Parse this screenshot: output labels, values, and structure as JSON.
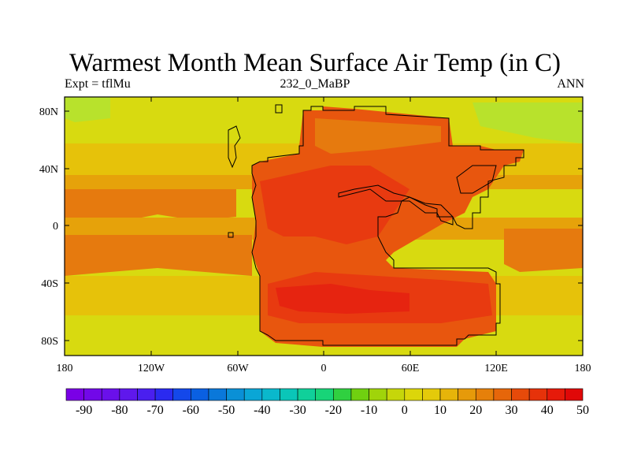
{
  "title": "Warmest Month Mean Surface Air Temp (in C)",
  "subtitle_left": "Expt = tflMu",
  "subtitle_center": "232_0_MaBP",
  "subtitle_right": "ANN",
  "y_ticks": [
    "80N",
    "40N",
    "0",
    "40S",
    "80S"
  ],
  "x_ticks": [
    "180",
    "120W",
    "60W",
    "0",
    "60E",
    "120E",
    "180"
  ],
  "colorbar": {
    "labels": [
      "-90",
      "-80",
      "-70",
      "-60",
      "-50",
      "-40",
      "-30",
      "-20",
      "-10",
      "0",
      "10",
      "20",
      "30",
      "40",
      "50"
    ],
    "colors": [
      "#7a00e6",
      "#7208e8",
      "#6a10ea",
      "#5f18ec",
      "#4a1fef",
      "#2a2af0",
      "#1448ea",
      "#0a60e2",
      "#0a78da",
      "#0a90d6",
      "#0aa6d6",
      "#0ab8cc",
      "#0ac6b8",
      "#10d09a",
      "#18d478",
      "#30d040",
      "#70d010",
      "#a0d40a",
      "#c6d60a",
      "#dcd60a",
      "#e4ca0a",
      "#e6b40a",
      "#e69a0a",
      "#e6800a",
      "#e6660a",
      "#e64a0a",
      "#e6320a",
      "#e61a0a",
      "#e00808"
    ]
  },
  "map_colors": {
    "cold_green": "#b8e22c",
    "cool": "#d8da10",
    "mild": "#e6c20a",
    "warm": "#e6a20a",
    "hot": "#e67a0e",
    "hotter": "#e8560e",
    "hottest": "#e83a10",
    "extreme": "#e62410"
  }
}
